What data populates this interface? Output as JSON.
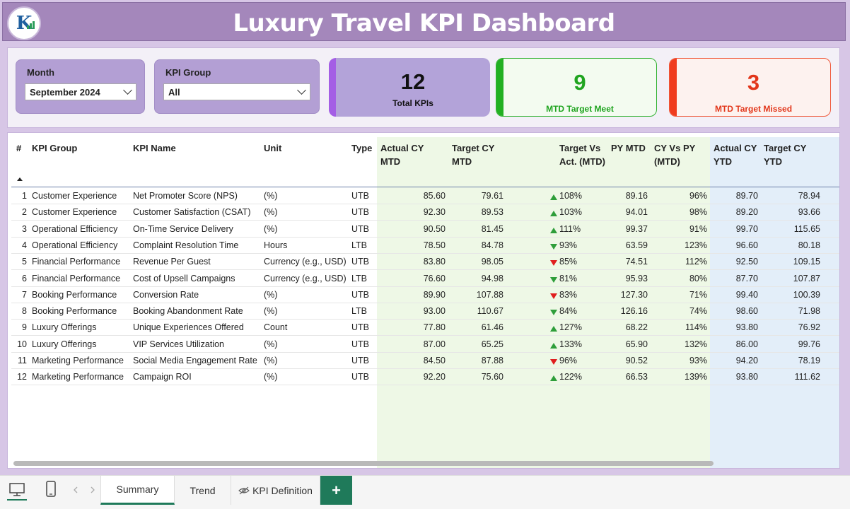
{
  "header": {
    "title": "Luxury Travel KPI Dashboard"
  },
  "filters": {
    "month": {
      "label": "Month",
      "value": "September 2024"
    },
    "kpi_group": {
      "label": "KPI Group",
      "value": "All"
    }
  },
  "cards": {
    "total": {
      "value": "12",
      "label": "Total KPIs",
      "accent": "#a45ee5",
      "bg": "#b3a3d9"
    },
    "meet": {
      "value": "9",
      "label": "MTD Target Meet",
      "accent": "#22b022",
      "color": "#1fa41f"
    },
    "missed": {
      "value": "3",
      "label": "MTD Target Missed",
      "accent": "#f03c1e",
      "color": "#e2361a"
    }
  },
  "table": {
    "columns": [
      "#",
      "KPI Group",
      "KPI Name",
      "Unit",
      "Type",
      "Actual CY MTD",
      "Target CY MTD",
      "Target Vs Act. (MTD)",
      "PY MTD",
      "CY Vs PY (MTD)",
      "Actual CY YTD",
      "Target CY YTD"
    ],
    "rows": [
      {
        "n": "1",
        "group": "Customer Experience",
        "name": "Net Promoter Score (NPS)",
        "unit": "(%)",
        "type": "UTB",
        "act": "85.60",
        "tgt": "79.61",
        "icon": "up",
        "tva": "108%",
        "py": "89.16",
        "cvp": "96%",
        "ytd": "89.70",
        "tytd": "78.94"
      },
      {
        "n": "2",
        "group": "Customer Experience",
        "name": "Customer Satisfaction (CSAT)",
        "unit": "(%)",
        "type": "UTB",
        "act": "92.30",
        "tgt": "89.53",
        "icon": "up",
        "tva": "103%",
        "py": "94.01",
        "cvp": "98%",
        "ytd": "89.20",
        "tytd": "93.66"
      },
      {
        "n": "3",
        "group": "Operational Efficiency",
        "name": "On-Time Service Delivery",
        "unit": "(%)",
        "type": "UTB",
        "act": "90.50",
        "tgt": "81.45",
        "icon": "up",
        "tva": "111%",
        "py": "99.37",
        "cvp": "91%",
        "ytd": "99.70",
        "tytd": "115.65"
      },
      {
        "n": "4",
        "group": "Operational Efficiency",
        "name": "Complaint Resolution Time",
        "unit": "Hours",
        "type": "LTB",
        "act": "78.50",
        "tgt": "84.78",
        "icon": "down-green",
        "tva": "93%",
        "py": "63.59",
        "cvp": "123%",
        "ytd": "96.60",
        "tytd": "80.18"
      },
      {
        "n": "5",
        "group": "Financial Performance",
        "name": "Revenue Per Guest",
        "unit": "Currency (e.g., USD)",
        "type": "UTB",
        "act": "83.80",
        "tgt": "98.05",
        "icon": "down-red",
        "tva": "85%",
        "py": "74.51",
        "cvp": "112%",
        "ytd": "92.50",
        "tytd": "109.15"
      },
      {
        "n": "6",
        "group": "Financial Performance",
        "name": "Cost of Upsell Campaigns",
        "unit": "Currency (e.g., USD)",
        "type": "LTB",
        "act": "76.60",
        "tgt": "94.98",
        "icon": "down-green",
        "tva": "81%",
        "py": "95.93",
        "cvp": "80%",
        "ytd": "87.70",
        "tytd": "107.87"
      },
      {
        "n": "7",
        "group": "Booking Performance",
        "name": "Conversion Rate",
        "unit": "(%)",
        "type": "UTB",
        "act": "89.90",
        "tgt": "107.88",
        "icon": "down-red",
        "tva": "83%",
        "py": "127.30",
        "cvp": "71%",
        "ytd": "99.40",
        "tytd": "100.39"
      },
      {
        "n": "8",
        "group": "Booking Performance",
        "name": "Booking Abandonment Rate",
        "unit": "(%)",
        "type": "LTB",
        "act": "93.00",
        "tgt": "110.67",
        "icon": "down-green",
        "tva": "84%",
        "py": "126.16",
        "cvp": "74%",
        "ytd": "98.60",
        "tytd": "71.98"
      },
      {
        "n": "9",
        "group": "Luxury Offerings",
        "name": "Unique Experiences Offered",
        "unit": "Count",
        "type": "UTB",
        "act": "77.80",
        "tgt": "61.46",
        "icon": "up",
        "tva": "127%",
        "py": "68.22",
        "cvp": "114%",
        "ytd": "93.80",
        "tytd": "76.92"
      },
      {
        "n": "10",
        "group": "Luxury Offerings",
        "name": "VIP Services Utilization",
        "unit": "(%)",
        "type": "UTB",
        "act": "87.00",
        "tgt": "65.25",
        "icon": "up",
        "tva": "133%",
        "py": "65.90",
        "cvp": "132%",
        "ytd": "86.00",
        "tytd": "99.76"
      },
      {
        "n": "11",
        "group": "Marketing Performance",
        "name": "Social Media Engagement Rate",
        "unit": "(%)",
        "type": "UTB",
        "act": "84.50",
        "tgt": "87.88",
        "icon": "down-red",
        "tva": "96%",
        "py": "90.52",
        "cvp": "93%",
        "ytd": "94.20",
        "tytd": "78.19"
      },
      {
        "n": "12",
        "group": "Marketing Performance",
        "name": "Campaign ROI",
        "unit": "(%)",
        "type": "UTB",
        "act": "92.20",
        "tgt": "75.60",
        "icon": "up",
        "tva": "122%",
        "py": "66.53",
        "cvp": "139%",
        "ytd": "93.80",
        "tytd": "111.62"
      }
    ]
  },
  "tabs": {
    "summary": "Summary",
    "trend": "Trend",
    "kpi_definition": "KPI Definition",
    "add": "+"
  }
}
